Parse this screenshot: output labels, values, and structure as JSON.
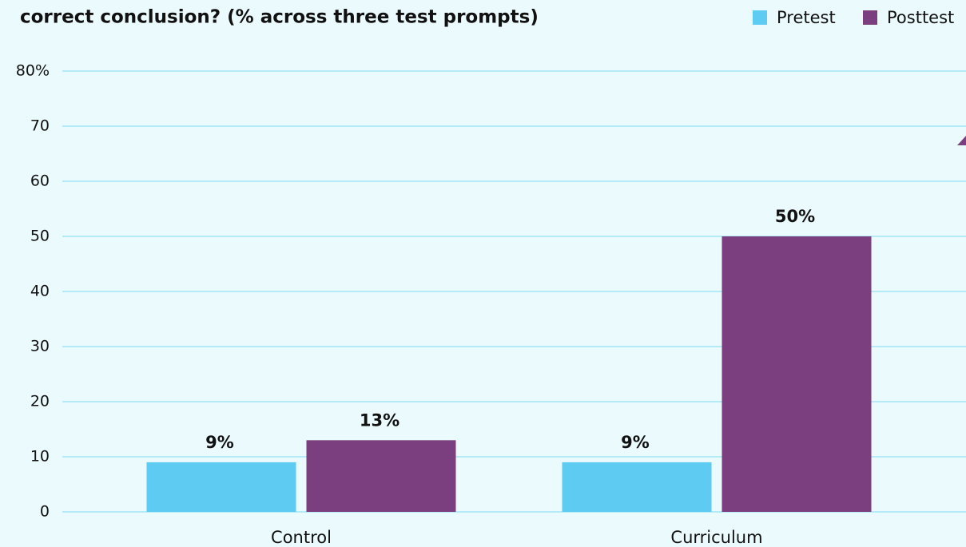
{
  "chart_data": {
    "type": "bar",
    "title": "correct conclusion? (% across three test prompts)",
    "categories": [
      "Control",
      "Curriculum"
    ],
    "series": [
      {
        "name": "Pretest",
        "color": "#5ecbf3",
        "values": [
          9,
          9
        ],
        "value_labels": [
          "9%",
          "9%"
        ]
      },
      {
        "name": "Posttest",
        "color": "#7b3f80",
        "values": [
          13,
          50
        ],
        "value_labels": [
          "13%",
          "50%"
        ]
      }
    ],
    "ylim": [
      0,
      80
    ],
    "yticks": [
      0,
      10,
      20,
      30,
      40,
      50,
      60,
      70,
      {
        "value": 80,
        "label": "80%"
      }
    ],
    "grid": true,
    "legend": "top-right"
  }
}
